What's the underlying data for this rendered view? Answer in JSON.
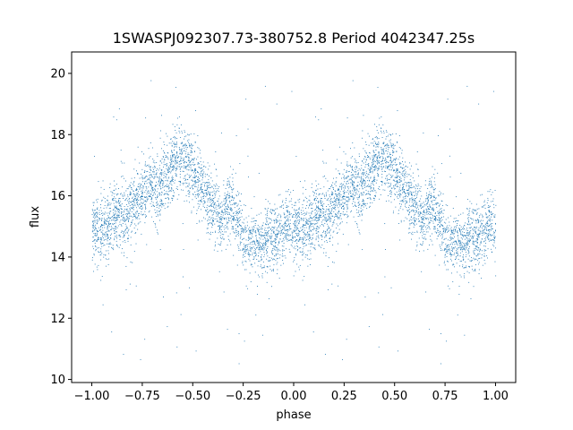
{
  "chart_data": {
    "type": "scatter",
    "title": "1SWASPJ092307.73-380752.8 Period 4042347.25s",
    "xlabel": "phase",
    "ylabel": "flux",
    "xlim": [
      -1.1,
      1.1
    ],
    "ylim": [
      9.9,
      20.7
    ],
    "xticks": [
      -1.0,
      -0.75,
      -0.5,
      -0.25,
      0.0,
      0.25,
      0.5,
      0.75,
      1.0
    ],
    "xtick_labels": [
      "−1.00",
      "−0.75",
      "−0.50",
      "−0.25",
      "0.00",
      "0.25",
      "0.50",
      "0.75",
      "1.00"
    ],
    "yticks": [
      10,
      12,
      14,
      16,
      18,
      20
    ],
    "ytick_labels": [
      "10",
      "12",
      "14",
      "16",
      "18",
      "20"
    ],
    "grid": false,
    "legend": "none",
    "marker_color": "#1f77b4",
    "series": [
      {
        "note_profile_points": "approximate mean flux vs phase over one cycle (phase 0 to 1, mirrored to -1 to 0)",
        "phase": [
          0.0,
          0.04,
          0.08,
          0.12,
          0.16,
          0.2,
          0.24,
          0.28,
          0.32,
          0.36,
          0.4,
          0.44,
          0.48,
          0.52,
          0.56,
          0.6,
          0.64,
          0.68,
          0.72,
          0.76,
          0.8,
          0.84,
          0.88,
          0.92,
          0.96,
          1.0
        ],
        "flux": [
          15.0,
          14.8,
          14.9,
          15.5,
          15.3,
          15.7,
          15.9,
          16.3,
          16.1,
          16.6,
          17.0,
          17.3,
          17.0,
          16.5,
          16.0,
          15.6,
          15.3,
          15.8,
          15.2,
          14.4,
          14.6,
          14.3,
          14.8,
          14.6,
          15.1,
          15.0
        ],
        "scatter_sd": 0.55,
        "n_points_per_cycle": 3000
      }
    ]
  }
}
